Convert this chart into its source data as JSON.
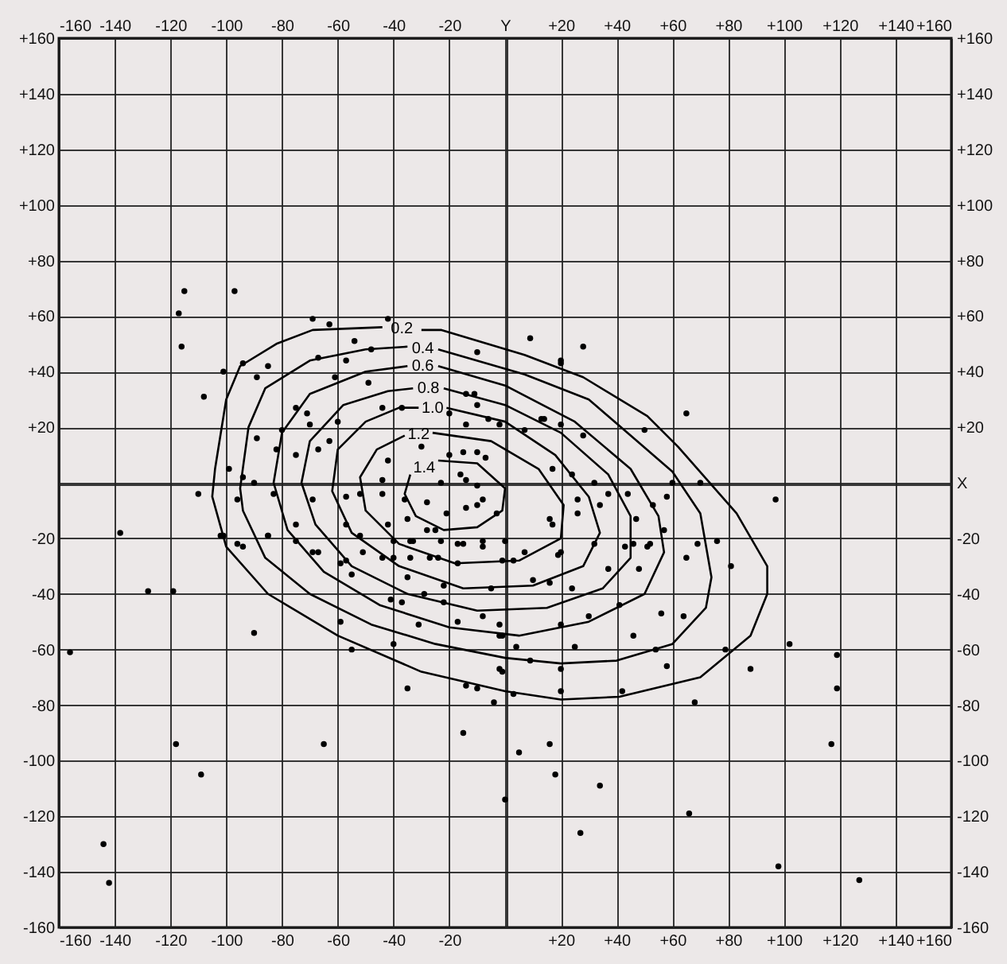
{
  "chart_data": {
    "type": "scatter",
    "xlim": [
      -160,
      160
    ],
    "ylim": [
      -160,
      160
    ],
    "x2lim": [
      -160,
      160
    ],
    "y2lim": [
      -160,
      160
    ],
    "xticks": [
      -160,
      -140,
      -120,
      -100,
      -80,
      -60,
      -40,
      -20,
      {
        "value": 0,
        "label": null
      },
      {
        "value": 20,
        "label": "+20"
      },
      {
        "value": 40,
        "label": "+40"
      },
      {
        "value": 60,
        "label": "+60"
      },
      {
        "value": 80,
        "label": "+80"
      },
      {
        "value": 100,
        "label": "+100"
      },
      {
        "value": 120,
        "label": "+120"
      },
      {
        "value": 140,
        "label": "+140"
      },
      {
        "value": 160,
        "label": "+160"
      }
    ],
    "x2ticks": [
      -160,
      -140,
      -120,
      -100,
      -80,
      -60,
      -40,
      -20,
      {
        "value": 0,
        "label": "Y"
      },
      {
        "value": 20,
        "label": "+20"
      },
      {
        "value": 40,
        "label": "+40"
      },
      {
        "value": 60,
        "label": "+60"
      },
      {
        "value": 80,
        "label": "+80"
      },
      {
        "value": 100,
        "label": "+100"
      },
      {
        "value": 120,
        "label": "+120"
      },
      {
        "value": 140,
        "label": "+140"
      },
      {
        "value": 160,
        "label": "+160"
      }
    ],
    "yticks": [
      -160,
      -140,
      -120,
      -100,
      -80,
      -60,
      -40,
      -20,
      {
        "value": 0,
        "label": null
      },
      {
        "value": 20,
        "label": "+20"
      },
      {
        "value": 40,
        "label": "+40"
      },
      {
        "value": 60,
        "label": "+60"
      },
      {
        "value": 80,
        "label": "+80"
      },
      {
        "value": 100,
        "label": "+100"
      },
      {
        "value": 120,
        "label": "+120"
      },
      {
        "value": 140,
        "label": "+140"
      },
      {
        "value": 160,
        "label": "+160"
      }
    ],
    "y2ticks": [
      -160,
      -140,
      -120,
      -100,
      -80,
      -60,
      -40,
      -20,
      {
        "value": 0,
        "label": "X"
      },
      {
        "value": 20,
        "label": "+20"
      },
      {
        "value": 40,
        "label": "+40"
      },
      {
        "value": 60,
        "label": "+60"
      },
      {
        "value": 80,
        "label": "+80"
      },
      {
        "value": 100,
        "label": "+100"
      },
      {
        "value": 120,
        "label": "+120"
      },
      {
        "value": 140,
        "label": "+140"
      },
      {
        "value": 160,
        "label": "+160"
      }
    ],
    "grid": true,
    "line_style": "solid",
    "series": [
      {
        "marker": "circle",
        "color": "#000000",
        "x": [
          -138,
          -128,
          -119,
          -156,
          -90,
          -118,
          -109,
          -65,
          -15,
          -144,
          -142,
          0,
          -35,
          -55,
          -4,
          -10,
          -14,
          5,
          16,
          18,
          34,
          27,
          66,
          98,
          127,
          117,
          119,
          119,
          102,
          88,
          68,
          58,
          79,
          81,
          65,
          56,
          64,
          54,
          46,
          48,
          30,
          25,
          20,
          20,
          20,
          4,
          9,
          3,
          42,
          19,
          24,
          16,
          10,
          3,
          41,
          37,
          57,
          46,
          32,
          52,
          69,
          76,
          -2,
          -2,
          9,
          28,
          20,
          65,
          97,
          70,
          60,
          58,
          53,
          44,
          37,
          34,
          26,
          28,
          20,
          14,
          24,
          32,
          26,
          17,
          47,
          51,
          50,
          43,
          -115,
          -97,
          -117,
          -116,
          -69,
          -63,
          -42,
          -10,
          20,
          -101,
          -94,
          -85,
          -67,
          -57,
          -48,
          -54,
          -108,
          -89,
          -61,
          -49,
          -75,
          -71,
          -44,
          -37,
          -14,
          -11,
          -10,
          -20,
          -14,
          -6,
          -2,
          7,
          13,
          -80,
          -70,
          -60,
          -89,
          -63,
          -82,
          -75,
          -67,
          -42,
          -30,
          -20,
          -15,
          -10,
          -7,
          -23,
          -16,
          -14,
          -10,
          -21,
          -14,
          -10,
          -8,
          -3,
          -36,
          -28,
          -99,
          -94,
          -90,
          -110,
          -96,
          -83,
          -69,
          -57,
          -52,
          -44,
          -44,
          -75,
          -101,
          -96,
          -85,
          -57,
          -52,
          -42,
          -35,
          -25,
          -33,
          -23,
          -15,
          -8,
          0,
          7,
          16,
          20,
          17,
          -57,
          -67,
          -40,
          -27,
          -102,
          -94,
          -85,
          -75,
          -69,
          -59,
          -55,
          -51,
          -44,
          -40,
          -34,
          -34,
          -28,
          -24,
          -17,
          -17,
          -8,
          -1,
          -59,
          -41,
          -37,
          -35,
          -29,
          -31,
          -22,
          -22,
          -17,
          -8,
          -2,
          -5,
          -1,
          -1,
          -40
        ],
        "values": [
          -18,
          -39,
          -39,
          -61,
          -54,
          -94,
          -105,
          -94,
          -90,
          -130,
          -144,
          -114,
          -74,
          -60,
          -79,
          -74,
          -73,
          -97,
          -94,
          -105,
          -109,
          -126,
          -119,
          -138,
          -143,
          -94,
          -74,
          -62,
          -58,
          -67,
          -79,
          -66,
          -60,
          -30,
          -27,
          -47,
          -48,
          -60,
          -55,
          -31,
          -48,
          -59,
          -51,
          -67,
          -75,
          -59,
          -64,
          -76,
          -75,
          -26,
          -38,
          -36,
          -35,
          -28,
          -44,
          -31,
          -17,
          -22,
          -22,
          -22,
          -22,
          -21,
          -55,
          -67,
          52,
          49,
          44,
          25,
          -6,
          0,
          0,
          -5,
          -8,
          -4,
          -4,
          -8,
          -6,
          17,
          21,
          23,
          3,
          0,
          -11,
          -15,
          -13,
          -23,
          19,
          -23,
          69,
          69,
          61,
          49,
          59,
          57,
          59,
          47,
          43,
          40,
          43,
          42,
          45,
          44,
          48,
          51,
          31,
          38,
          38,
          36,
          27,
          25,
          27,
          27,
          32,
          32,
          28,
          25,
          21,
          23,
          21,
          19,
          23,
          19,
          21,
          22,
          16,
          15,
          12,
          10,
          12,
          8,
          13,
          10,
          11,
          11,
          9,
          0,
          3,
          1,
          -1,
          -11,
          -9,
          -8,
          -6,
          -11,
          -6,
          -7,
          5,
          2,
          0,
          -4,
          -6,
          -4,
          -6,
          -5,
          -4,
          -4,
          1,
          -15,
          -19,
          -22,
          -19,
          -15,
          -19,
          -15,
          -13,
          -17,
          -21,
          -21,
          -22,
          -23,
          -21,
          -25,
          -13,
          -25,
          5,
          -28,
          -25,
          -27,
          -27,
          -19,
          -23,
          -19,
          -21,
          -25,
          -29,
          -33,
          -25,
          -27,
          -21,
          -21,
          -27,
          -17,
          -27,
          -29,
          -22,
          -21,
          -28,
          -50,
          -42,
          -43,
          -34,
          -40,
          -51,
          -37,
          -43,
          -50,
          -48,
          -51,
          -38,
          -55,
          -68,
          -58
        ]
      },
      {
        "type": "line",
        "marker": "none",
        "name": "0.2",
        "color": "#000000",
        "x": [
          -30,
          -23,
          7,
          28,
          51,
          62,
          83,
          94,
          94,
          88,
          70,
          41,
          20,
          0,
          -30,
          -60,
          -85,
          -100,
          -105,
          -104,
          -100,
          -95,
          -82,
          -69,
          -44
        ],
        "values": [
          55,
          55,
          46,
          38,
          24,
          13,
          -11,
          -30,
          -40,
          -55,
          -70,
          -77,
          -78,
          -75,
          -68,
          -55,
          -40,
          -23,
          -5,
          5,
          30,
          42,
          50,
          55,
          56
        ]
      },
      {
        "type": "line",
        "marker": "none",
        "name": "0.4",
        "color": "#000000",
        "x": [
          -24,
          7,
          30,
          45,
          60,
          70,
          74,
          72,
          60,
          40,
          20,
          0,
          -25,
          -48,
          -70,
          -86,
          -94,
          -95,
          -92,
          -86,
          -70,
          -50,
          -35
        ],
        "values": [
          48,
          39,
          30,
          17,
          4,
          -11,
          -34,
          -45,
          -58,
          -64,
          -65,
          -63,
          -58,
          -51,
          -40,
          -27,
          -10,
          -2,
          20,
          34,
          44,
          48,
          49
        ]
      },
      {
        "type": "line",
        "marker": "none",
        "name": "0.6",
        "color": "#000000",
        "x": [
          -24,
          0,
          25,
          45,
          55,
          57,
          50,
          30,
          5,
          -20,
          -45,
          -65,
          -78,
          -83,
          -80,
          -70,
          -50,
          -35
        ],
        "values": [
          42,
          35,
          22,
          5,
          -12,
          -25,
          -40,
          -50,
          -55,
          -52,
          -44,
          -32,
          -17,
          0,
          18,
          32,
          40,
          42
        ]
      },
      {
        "type": "line",
        "marker": "none",
        "name": "0.8",
        "color": "#000000",
        "x": [
          -22,
          0,
          20,
          37,
          45,
          45,
          35,
          15,
          -10,
          -35,
          -55,
          -68,
          -73,
          -70,
          -58,
          -42,
          -33
        ],
        "values": [
          34,
          28,
          18,
          3,
          -12,
          -27,
          -38,
          -45,
          -46,
          -40,
          -30,
          -15,
          0,
          15,
          28,
          33,
          34
        ]
      },
      {
        "type": "line",
        "marker": "none",
        "name": "1.0",
        "color": "#000000",
        "x": [
          -21,
          0,
          18,
          30,
          34,
          28,
          10,
          -15,
          -38,
          -55,
          -62,
          -60,
          -50,
          -38,
          -31
        ],
        "values": [
          27,
          22,
          10,
          -5,
          -18,
          -30,
          -37,
          -38,
          -30,
          -18,
          -3,
          12,
          22,
          27,
          27
        ]
      },
      {
        "type": "line",
        "marker": "none",
        "name": "1.2",
        "color": "#000000",
        "x": [
          -26,
          -5,
          12,
          21,
          20,
          5,
          -18,
          -38,
          -50,
          -52,
          -46,
          -36
        ],
        "values": [
          18,
          15,
          5,
          -8,
          -20,
          -28,
          -29,
          -22,
          -10,
          2,
          12,
          17
        ]
      },
      {
        "type": "line",
        "marker": "none",
        "name": "1.4",
        "color": "#000000",
        "x": [
          -24,
          -10,
          0,
          -1,
          -10,
          -22,
          -32,
          -36,
          -34
        ],
        "values": [
          8,
          7,
          -2,
          -10,
          -16,
          -17,
          -12,
          -4,
          3
        ]
      }
    ]
  }
}
